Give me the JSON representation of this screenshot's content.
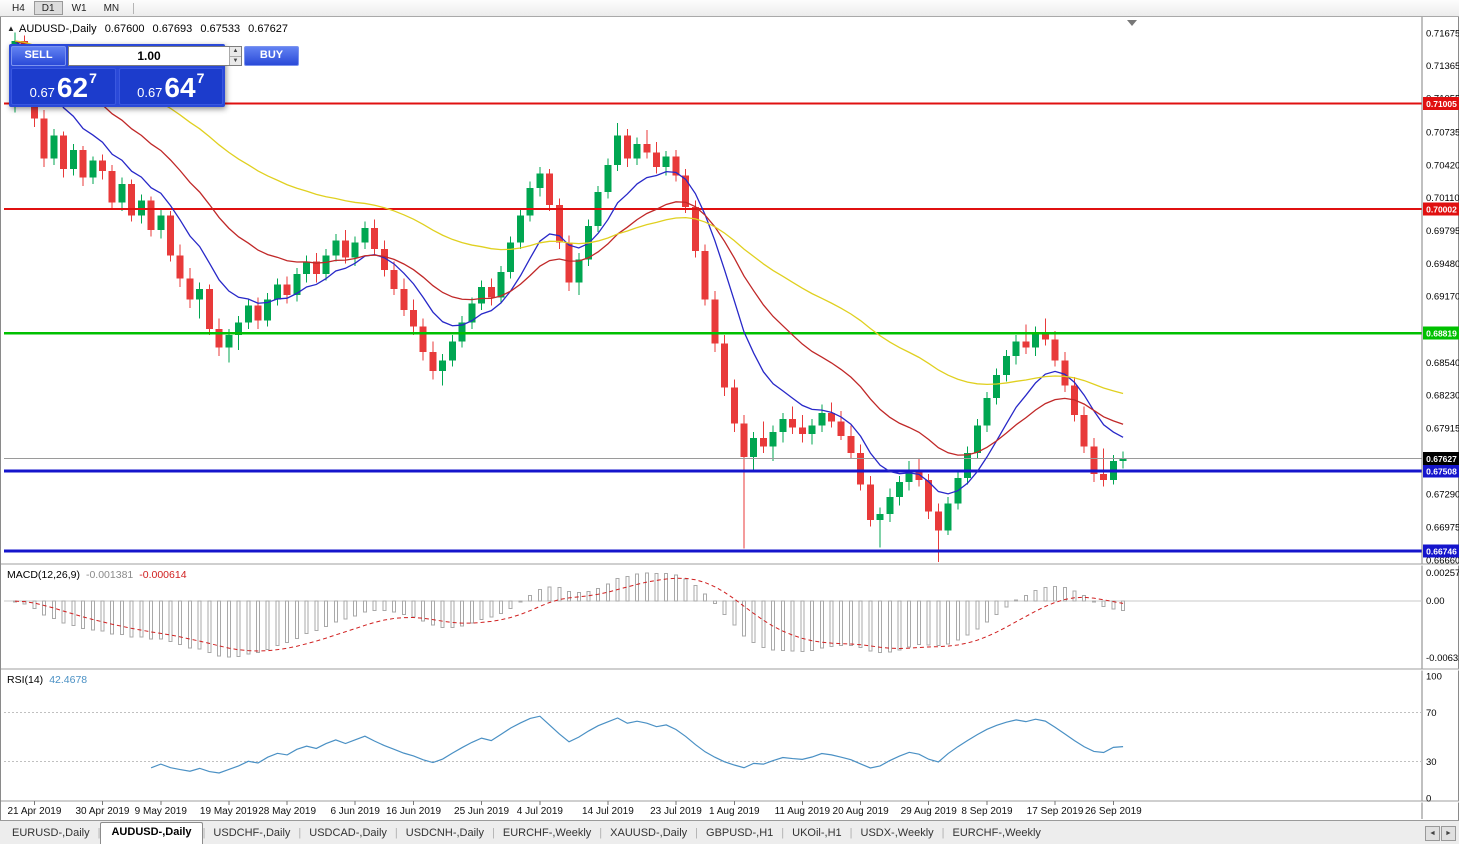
{
  "toolbar": {
    "timeframes": [
      "H4",
      "D1",
      "W1",
      "MN"
    ],
    "active": "D1"
  },
  "chart": {
    "title": {
      "symbol": "AUDUSD-,Daily",
      "open": "0.67600",
      "high": "0.67693",
      "low": "0.67533",
      "close": "0.67627"
    },
    "one_click": {
      "sell_label": "SELL",
      "buy_label": "BUY",
      "volume": "1.00",
      "sell_price": {
        "prefix": "0.67",
        "big": "62",
        "sup": "7"
      },
      "buy_price": {
        "prefix": "0.67",
        "big": "64",
        "sup": "7"
      }
    }
  },
  "chart_data": {
    "type": "candlestick",
    "symbol": "AUDUSD",
    "timeframe": "Daily",
    "y_range": [
      0.6666,
      0.71675
    ],
    "y_ticks": [
      "0.71675",
      "0.71365",
      "0.71055",
      "0.70735",
      "0.70420",
      "0.70110",
      "0.69795",
      "0.69480",
      "0.69170",
      "0.68855",
      "0.68540",
      "0.68230",
      "0.67915",
      "0.67600",
      "0.67290",
      "0.66975",
      "0.66660"
    ],
    "hlines": [
      {
        "price": 0.71005,
        "label": "0.71005",
        "color": "#e01010",
        "width": 2
      },
      {
        "price": 0.70002,
        "label": "0.70002",
        "color": "#e01010",
        "width": 2
      },
      {
        "price": 0.68819,
        "label": "0.68819",
        "color": "#00c000",
        "width": 2.5
      },
      {
        "price": 0.67508,
        "label": "0.67508",
        "color": "#1515cc",
        "width": 3
      },
      {
        "price": 0.66746,
        "label": "0.66746",
        "color": "#1515cc",
        "width": 3
      }
    ],
    "current_price": {
      "value": 0.67627,
      "label": "0.67627",
      "color": "#000000"
    },
    "moving_averages": [
      {
        "period": 9,
        "color": "#2828c8"
      },
      {
        "period": 21,
        "color": "#c02828"
      },
      {
        "period": 50,
        "color": "#e0d020"
      }
    ],
    "colors": {
      "up": "#00a651",
      "down": "#e83a3a",
      "macd_hist": "#a9a9a9",
      "macd_signal": "#d02020",
      "rsi": "#4a90c4"
    },
    "macd": {
      "label": "MACD(12,26,9)",
      "value_main": "-0.001381",
      "value_signal": "-0.000614",
      "params": [
        12,
        26,
        9
      ],
      "ticks": [
        "0.002574",
        "0.00",
        "-0.006326"
      ]
    },
    "rsi": {
      "label": "RSI(14)",
      "value": "42.4678",
      "period": 14,
      "levels": [
        70,
        30
      ],
      "ticks": [
        "100",
        "70",
        "30",
        "0"
      ]
    },
    "date_labels": [
      "21 Apr 2019",
      "30 Apr 2019",
      "9 May 2019",
      "19 May 2019",
      "28 May 2019",
      "6 Jun 2019",
      "16 Jun 2019",
      "25 Jun 2019",
      "4 Jul 2019",
      "14 Jul 2019",
      "23 Jul 2019",
      "1 Aug 2019",
      "11 Aug 2019",
      "20 Aug 2019",
      "29 Aug 2019",
      "8 Sep 2019",
      "17 Sep 2019",
      "26 Sep 2019"
    ],
    "date_label_bars": [
      2,
      9,
      15,
      22,
      28,
      35,
      41,
      48,
      54,
      61,
      68,
      74,
      81,
      87,
      94,
      100,
      107,
      113
    ],
    "ohlc": [
      [
        0.7098,
        0.7168,
        0.7092,
        0.716
      ],
      [
        0.716,
        0.7165,
        0.7116,
        0.7124
      ],
      [
        0.7124,
        0.7138,
        0.7078,
        0.7086
      ],
      [
        0.7086,
        0.7094,
        0.704,
        0.7048
      ],
      [
        0.7048,
        0.7076,
        0.7042,
        0.707
      ],
      [
        0.707,
        0.7074,
        0.703,
        0.7038
      ],
      [
        0.7038,
        0.7062,
        0.7032,
        0.7056
      ],
      [
        0.7056,
        0.706,
        0.7022,
        0.703
      ],
      [
        0.703,
        0.705,
        0.7024,
        0.7046
      ],
      [
        0.7046,
        0.7052,
        0.7028,
        0.7036
      ],
      [
        0.7036,
        0.7042,
        0.7,
        0.7006
      ],
      [
        0.7006,
        0.703,
        0.6998,
        0.7024
      ],
      [
        0.7024,
        0.7028,
        0.6988,
        0.6994
      ],
      [
        0.6994,
        0.7014,
        0.6986,
        0.7008
      ],
      [
        0.7008,
        0.7012,
        0.6974,
        0.698
      ],
      [
        0.698,
        0.7,
        0.6972,
        0.6994
      ],
      [
        0.6994,
        0.6998,
        0.695,
        0.6956
      ],
      [
        0.6956,
        0.6966,
        0.6926,
        0.6934
      ],
      [
        0.6934,
        0.6944,
        0.6906,
        0.6914
      ],
      [
        0.6914,
        0.693,
        0.6896,
        0.6924
      ],
      [
        0.6924,
        0.6928,
        0.688,
        0.6886
      ],
      [
        0.6886,
        0.6896,
        0.686,
        0.6868
      ],
      [
        0.6868,
        0.6886,
        0.6854,
        0.688
      ],
      [
        0.688,
        0.6898,
        0.6866,
        0.6892
      ],
      [
        0.6892,
        0.6914,
        0.6886,
        0.6908
      ],
      [
        0.6908,
        0.6916,
        0.6886,
        0.6894
      ],
      [
        0.6894,
        0.692,
        0.6888,
        0.6914
      ],
      [
        0.6914,
        0.6934,
        0.6908,
        0.6928
      ],
      [
        0.6928,
        0.6936,
        0.691,
        0.6918
      ],
      [
        0.6918,
        0.6944,
        0.6912,
        0.6938
      ],
      [
        0.6938,
        0.6956,
        0.693,
        0.695
      ],
      [
        0.695,
        0.6958,
        0.693,
        0.6938
      ],
      [
        0.6938,
        0.6962,
        0.6932,
        0.6956
      ],
      [
        0.6956,
        0.6976,
        0.695,
        0.697
      ],
      [
        0.697,
        0.698,
        0.6948,
        0.6954
      ],
      [
        0.6954,
        0.6974,
        0.6946,
        0.6968
      ],
      [
        0.6968,
        0.6988,
        0.6962,
        0.6982
      ],
      [
        0.6982,
        0.699,
        0.6956,
        0.6962
      ],
      [
        0.6962,
        0.697,
        0.6936,
        0.6942
      ],
      [
        0.6942,
        0.695,
        0.6918,
        0.6924
      ],
      [
        0.6924,
        0.6934,
        0.6898,
        0.6904
      ],
      [
        0.6904,
        0.6914,
        0.688,
        0.6888
      ],
      [
        0.6888,
        0.6896,
        0.6856,
        0.6864
      ],
      [
        0.6864,
        0.6874,
        0.6838,
        0.6846
      ],
      [
        0.6846,
        0.6862,
        0.6832,
        0.6856
      ],
      [
        0.6856,
        0.688,
        0.685,
        0.6874
      ],
      [
        0.6874,
        0.6898,
        0.6868,
        0.6892
      ],
      [
        0.6892,
        0.6916,
        0.6886,
        0.691
      ],
      [
        0.691,
        0.6932,
        0.6904,
        0.6926
      ],
      [
        0.6926,
        0.6934,
        0.6908,
        0.6916
      ],
      [
        0.6916,
        0.6946,
        0.691,
        0.694
      ],
      [
        0.694,
        0.6974,
        0.6934,
        0.6968
      ],
      [
        0.6968,
        0.7,
        0.6962,
        0.6994
      ],
      [
        0.6994,
        0.7026,
        0.6988,
        0.702
      ],
      [
        0.702,
        0.704,
        0.7012,
        0.7034
      ],
      [
        0.7034,
        0.7038,
        0.6998,
        0.7004
      ],
      [
        0.7004,
        0.701,
        0.6962,
        0.6968
      ],
      [
        0.6968,
        0.6975,
        0.6922,
        0.693
      ],
      [
        0.693,
        0.6958,
        0.6918,
        0.6952
      ],
      [
        0.6952,
        0.699,
        0.6946,
        0.6984
      ],
      [
        0.6984,
        0.7022,
        0.6978,
        0.7016
      ],
      [
        0.7016,
        0.7048,
        0.701,
        0.7042
      ],
      [
        0.7042,
        0.7082,
        0.7036,
        0.707
      ],
      [
        0.707,
        0.7076,
        0.704,
        0.7048
      ],
      [
        0.7048,
        0.7068,
        0.7042,
        0.7062
      ],
      [
        0.7062,
        0.7075,
        0.7048,
        0.7054
      ],
      [
        0.7054,
        0.7064,
        0.7034,
        0.704
      ],
      [
        0.704,
        0.7055,
        0.7032,
        0.705
      ],
      [
        0.705,
        0.7056,
        0.7026,
        0.7032
      ],
      [
        0.7032,
        0.7038,
        0.6996,
        0.7002
      ],
      [
        0.7002,
        0.7008,
        0.6954,
        0.696
      ],
      [
        0.696,
        0.6966,
        0.6908,
        0.6914
      ],
      [
        0.6914,
        0.6922,
        0.6864,
        0.6872
      ],
      [
        0.6872,
        0.688,
        0.6822,
        0.683
      ],
      [
        0.683,
        0.6838,
        0.6788,
        0.6796
      ],
      [
        0.6796,
        0.6804,
        0.6677,
        0.6764
      ],
      [
        0.6764,
        0.6788,
        0.6752,
        0.6782
      ],
      [
        0.6782,
        0.6798,
        0.6768,
        0.6774
      ],
      [
        0.6774,
        0.6794,
        0.676,
        0.6788
      ],
      [
        0.6788,
        0.6806,
        0.6778,
        0.68
      ],
      [
        0.68,
        0.6812,
        0.6786,
        0.6792
      ],
      [
        0.6792,
        0.6804,
        0.6778,
        0.6786
      ],
      [
        0.6786,
        0.68,
        0.6776,
        0.6794
      ],
      [
        0.6794,
        0.6814,
        0.6788,
        0.6806
      ],
      [
        0.6806,
        0.6816,
        0.6792,
        0.6798
      ],
      [
        0.6798,
        0.6808,
        0.678,
        0.6784
      ],
      [
        0.6784,
        0.6794,
        0.6762,
        0.6768
      ],
      [
        0.6768,
        0.6776,
        0.6732,
        0.6738
      ],
      [
        0.6738,
        0.6746,
        0.6698,
        0.6704
      ],
      [
        0.6704,
        0.6716,
        0.6678,
        0.671
      ],
      [
        0.671,
        0.6734,
        0.6702,
        0.6726
      ],
      [
        0.6726,
        0.6746,
        0.6718,
        0.674
      ],
      [
        0.674,
        0.676,
        0.6732,
        0.6752
      ],
      [
        0.6752,
        0.6762,
        0.6736,
        0.6742
      ],
      [
        0.6742,
        0.6748,
        0.6705,
        0.6712
      ],
      [
        0.6712,
        0.672,
        0.6664,
        0.6694
      ],
      [
        0.6694,
        0.6726,
        0.669,
        0.672
      ],
      [
        0.672,
        0.675,
        0.6714,
        0.6744
      ],
      [
        0.6744,
        0.6774,
        0.6738,
        0.6768
      ],
      [
        0.6768,
        0.68,
        0.6762,
        0.6794
      ],
      [
        0.6794,
        0.6826,
        0.6788,
        0.682
      ],
      [
        0.682,
        0.6848,
        0.6814,
        0.6842
      ],
      [
        0.6842,
        0.6866,
        0.6836,
        0.686
      ],
      [
        0.686,
        0.688,
        0.6852,
        0.6874
      ],
      [
        0.6874,
        0.689,
        0.6862,
        0.6868
      ],
      [
        0.6868,
        0.6888,
        0.686,
        0.6882
      ],
      [
        0.6882,
        0.6896,
        0.687,
        0.6876
      ],
      [
        0.6876,
        0.6884,
        0.685,
        0.6856
      ],
      [
        0.6856,
        0.6864,
        0.6826,
        0.6832
      ],
      [
        0.6832,
        0.684,
        0.6798,
        0.6804
      ],
      [
        0.6804,
        0.6812,
        0.6768,
        0.6774
      ],
      [
        0.6774,
        0.6782,
        0.674,
        0.6748
      ],
      [
        0.6748,
        0.6772,
        0.6736,
        0.6742
      ],
      [
        0.6742,
        0.6766,
        0.6738,
        0.676
      ],
      [
        0.676,
        0.67693,
        0.67533,
        0.67627
      ]
    ]
  },
  "tabs": {
    "active_index": 1,
    "items": [
      "EURUSD-,Daily",
      "AUDUSD-,Daily",
      "USDCHF-,Daily",
      "USDCAD-,Daily",
      "USDCNH-,Daily",
      "EURCHF-,Weekly",
      "XAUUSD-,Daily",
      "GBPUSD-,H1",
      "UKOil-,H1",
      "USDX-,Weekly",
      "EURCHF-,Weekly"
    ]
  }
}
